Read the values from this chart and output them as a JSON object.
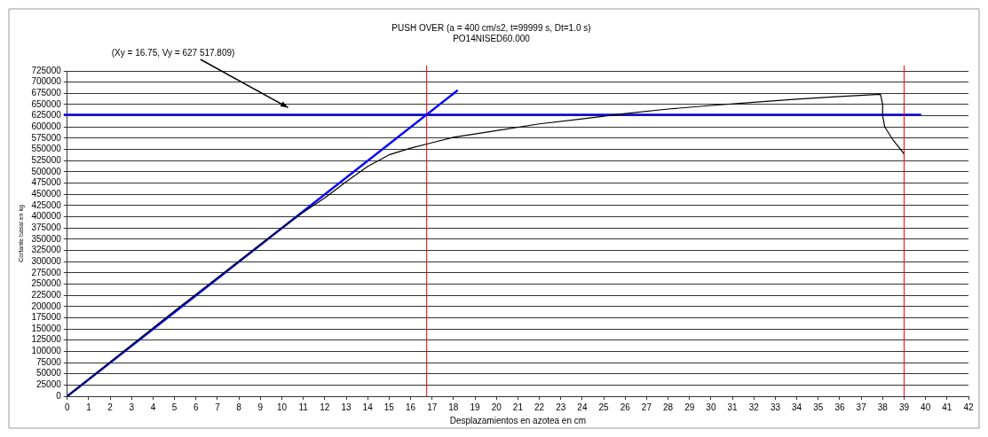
{
  "chart_data": {
    "type": "line",
    "title": "PUSH OVER (a = 400 cm/s2, t=99999 s, Dt=1.0 s)",
    "subtitle": "PO14NISED60.000",
    "xlabel": "Desplazamientos en azotea en cm",
    "ylabel": "Cortante basal en kg",
    "series": [
      {
        "color": "#000000",
        "x": [
          0,
          5,
          10,
          11,
          12,
          13,
          14,
          15,
          16,
          17,
          18,
          20,
          22,
          24,
          26,
          28,
          30,
          32,
          34,
          36,
          37.9,
          38,
          38,
          38.1,
          38.5,
          39
        ],
        "values": [
          0,
          190000,
          375000,
          410000,
          442000,
          478000,
          512000,
          538000,
          553000,
          565000,
          577000,
          592000,
          607000,
          618000,
          630000,
          640000,
          648000,
          655000,
          662000,
          668000,
          673000,
          650000,
          625000,
          600000,
          570000,
          540000
        ]
      },
      {
        "color": "#0000ff",
        "x": [
          0,
          18.2
        ],
        "values": [
          0,
          682000
        ]
      }
    ],
    "xlim": [
      0,
      42
    ],
    "xticks": [
      0,
      1,
      2,
      3,
      4,
      5,
      6,
      7,
      8,
      9,
      10,
      11,
      12,
      13,
      14,
      15,
      16,
      17,
      18,
      19,
      20,
      21,
      22,
      23,
      24,
      25,
      26,
      27,
      28,
      29,
      30,
      31,
      32,
      33,
      34,
      35,
      36,
      37,
      38,
      39,
      40,
      41,
      42
    ],
    "ylim": [
      0,
      725000
    ],
    "yticks": [
      0,
      25000,
      50000,
      75000,
      100000,
      125000,
      150000,
      175000,
      200000,
      225000,
      250000,
      275000,
      300000,
      325000,
      350000,
      375000,
      400000,
      425000,
      450000,
      475000,
      500000,
      525000,
      550000,
      575000,
      600000,
      625000,
      650000,
      675000,
      700000,
      725000
    ],
    "ref_lines": [
      {
        "axis": "y",
        "value": 627517.809,
        "color": "#0000ff"
      },
      {
        "axis": "x",
        "value": 16.75,
        "color": "#ff0000"
      },
      {
        "axis": "x",
        "value": 39,
        "color": "#ff0000"
      }
    ],
    "annotations": [
      "(Xy = 16.75, Vy = 627 517.809)"
    ],
    "grid": "y",
    "legend": false,
    "marker": "none",
    "line_style": "solid"
  }
}
